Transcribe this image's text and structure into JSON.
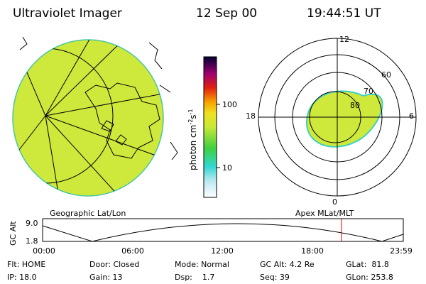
{
  "header": {
    "title": "Ultraviolet Imager",
    "date": "12 Sep 00",
    "time": "19:44:51 UT"
  },
  "colorbar": {
    "label_parts": [
      "photon cm",
      "-2",
      "s",
      "-1"
    ],
    "ticks": [
      "100",
      "10"
    ]
  },
  "polar": {
    "mlt_labels": [
      "12",
      "18",
      "6",
      "0"
    ],
    "lat_labels": [
      "60",
      "70",
      "80"
    ]
  },
  "panel_labels": [
    "Geographic Lat/Lon",
    "Apex MLat/MLT"
  ],
  "altitude_plot": {
    "y_label": "GC Alt",
    "yticks": [
      "9.0",
      "1.8"
    ],
    "xticks": [
      "00:00",
      "06:00",
      "12:00",
      "18:00",
      "23:59"
    ]
  },
  "status": [
    [
      "Flt: HOME",
      "Door: Closed",
      "Mode: Normal",
      "GC Alt: 4.2 Re",
      "GLat:  81.8"
    ],
    [
      "IP: 18.0",
      "Gain: 13",
      "Dsp:    1.7",
      "Seq: 39",
      "GLon: 253.8"
    ]
  ]
}
